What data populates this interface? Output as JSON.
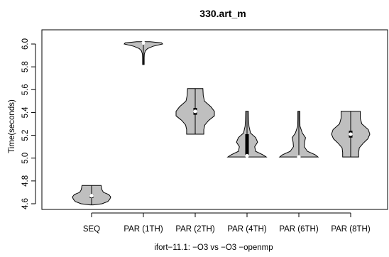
{
  "chart_data": {
    "type": "violin",
    "title": "330.art_m",
    "xlabel": "ifort−11.1: −O3 vs −O3 −openmp",
    "ylabel": "Time(seconds)",
    "ylim": [
      4.55,
      6.05
    ],
    "yticks": [
      "4.6",
      "4.8",
      "5.0",
      "5.2",
      "5.4",
      "5.6",
      "5.8",
      "6.0"
    ],
    "grid": false,
    "categories": [
      "SEQ",
      "PAR (1TH)",
      "PAR (2TH)",
      "PAR (4TH)",
      "PAR (6TH)",
      "PAR (8TH)"
    ],
    "series": [
      {
        "category": "SEQ",
        "min": 4.59,
        "max": 4.76,
        "median": 4.67,
        "q1": 4.65,
        "q3": 4.68,
        "density": [
          [
            4.59,
            0.08
          ],
          [
            4.6,
            0.55
          ],
          [
            4.62,
            0.85
          ],
          [
            4.64,
            0.95
          ],
          [
            4.66,
            1.0
          ],
          [
            4.68,
            0.9
          ],
          [
            4.7,
            0.62
          ],
          [
            4.72,
            0.55
          ],
          [
            4.74,
            0.52
          ],
          [
            4.76,
            0.5
          ]
        ]
      },
      {
        "category": "PAR (1TH)",
        "min": 5.82,
        "max": 6.02,
        "median": 6.01,
        "q1": 6.0,
        "q3": 6.01,
        "density": [
          [
            5.82,
            0.04
          ],
          [
            5.85,
            0.04
          ],
          [
            5.88,
            0.04
          ],
          [
            5.91,
            0.05
          ],
          [
            5.94,
            0.1
          ],
          [
            5.96,
            0.22
          ],
          [
            5.98,
            0.5
          ],
          [
            6.0,
            1.0
          ],
          [
            6.01,
            0.95
          ],
          [
            6.02,
            0.35
          ]
        ]
      },
      {
        "category": "PAR (2TH)",
        "min": 5.21,
        "max": 5.61,
        "median": 5.41,
        "q1": 5.38,
        "q3": 5.44,
        "density": [
          [
            5.21,
            0.45
          ],
          [
            5.25,
            0.45
          ],
          [
            5.29,
            0.5
          ],
          [
            5.33,
            0.7
          ],
          [
            5.37,
            1.0
          ],
          [
            5.41,
            1.0
          ],
          [
            5.45,
            0.82
          ],
          [
            5.5,
            0.48
          ],
          [
            5.55,
            0.42
          ],
          [
            5.61,
            0.4
          ]
        ]
      },
      {
        "category": "PAR (4TH)",
        "min": 5.01,
        "max": 5.41,
        "median": 5.02,
        "q1": 5.02,
        "q3": 5.21,
        "density": [
          [
            5.01,
            1.0
          ],
          [
            5.03,
            0.82
          ],
          [
            5.06,
            0.45
          ],
          [
            5.1,
            0.4
          ],
          [
            5.14,
            0.55
          ],
          [
            5.18,
            0.45
          ],
          [
            5.22,
            0.18
          ],
          [
            5.28,
            0.1
          ],
          [
            5.34,
            0.08
          ],
          [
            5.41,
            0.07
          ]
        ]
      },
      {
        "category": "PAR (6TH)",
        "min": 5.01,
        "max": 5.41,
        "median": 5.01,
        "q1": 5.01,
        "q3": 5.01,
        "density": [
          [
            5.01,
            1.0
          ],
          [
            5.03,
            0.85
          ],
          [
            5.06,
            0.45
          ],
          [
            5.1,
            0.28
          ],
          [
            5.14,
            0.3
          ],
          [
            5.18,
            0.35
          ],
          [
            5.22,
            0.18
          ],
          [
            5.28,
            0.06
          ],
          [
            5.34,
            0.05
          ],
          [
            5.41,
            0.05
          ]
        ]
      },
      {
        "category": "PAR (8TH)",
        "min": 5.01,
        "max": 5.41,
        "median": 5.21,
        "q1": 5.18,
        "q3": 5.24,
        "density": [
          [
            5.01,
            0.42
          ],
          [
            5.05,
            0.42
          ],
          [
            5.09,
            0.45
          ],
          [
            5.13,
            0.65
          ],
          [
            5.17,
            0.9
          ],
          [
            5.21,
            1.0
          ],
          [
            5.25,
            0.92
          ],
          [
            5.3,
            0.58
          ],
          [
            5.35,
            0.5
          ],
          [
            5.41,
            0.5
          ]
        ]
      }
    ]
  }
}
